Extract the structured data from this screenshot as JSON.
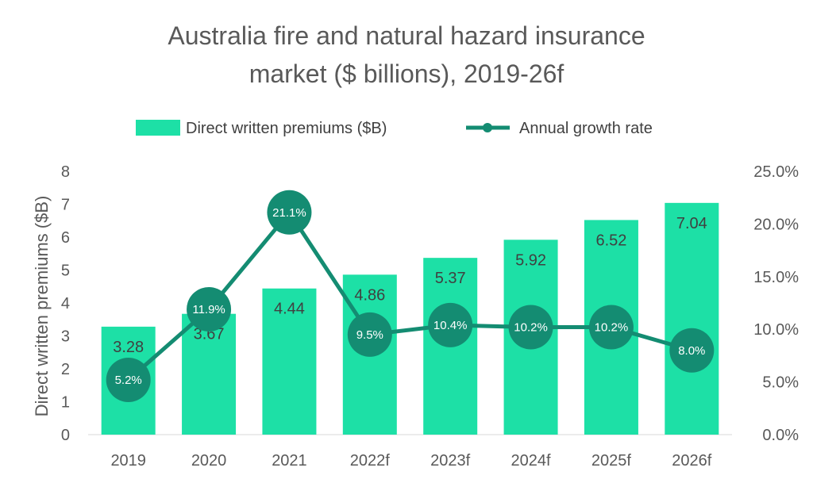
{
  "colors": {
    "bar": "#1de0a6",
    "line": "#148c72",
    "text": "#595959",
    "background": "#ffffff"
  },
  "chart_data": {
    "type": "bar+line",
    "title_lines": [
      "Australia fire and natural hazard insurance",
      "market ($ billions), 2019-26f"
    ],
    "categories": [
      "2019",
      "2020",
      "2021",
      "2022f",
      "2023f",
      "2024f",
      "2025f",
      "2026f"
    ],
    "series": [
      {
        "name": "Direct written premiums ($B)",
        "type": "bar",
        "axis": "left",
        "values": [
          3.28,
          3.67,
          4.44,
          4.86,
          5.37,
          5.92,
          6.52,
          7.04
        ],
        "labels": [
          "3.28",
          "3.67",
          "4.44",
          "4.86",
          "5.37",
          "5.92",
          "6.52",
          "7.04"
        ]
      },
      {
        "name": "Annual growth rate",
        "type": "line",
        "axis": "right",
        "values": [
          5.2,
          11.9,
          21.1,
          9.5,
          10.4,
          10.2,
          10.2,
          8.0
        ],
        "labels": [
          "5.2%",
          "11.9%",
          "21.1%",
          "9.5%",
          "10.4%",
          "10.2%",
          "10.2%",
          "8.0%"
        ]
      }
    ],
    "ylabel": "Direct written premiums ($B)",
    "ylim": [
      0,
      8
    ],
    "yticks": [
      "0",
      "1",
      "2",
      "3",
      "4",
      "5",
      "6",
      "7",
      "8"
    ],
    "y2lim": [
      0,
      25
    ],
    "y2ticks": [
      "0.0%",
      "5.0%",
      "10.0%",
      "15.0%",
      "20.0%",
      "25.0%"
    ],
    "legend_position": "top",
    "grid": false
  }
}
